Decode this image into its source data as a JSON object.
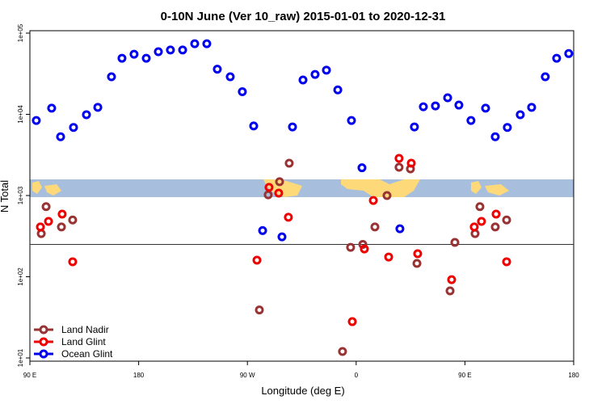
{
  "chart_data": {
    "type": "scatter",
    "title": "0-10N June (Ver 10_raw)   2015-01-01 to 2020-12-31",
    "x_label": "Longitude (deg E)",
    "y_label": "N Total",
    "log_y": true,
    "xlim": [
      90,
      540
    ],
    "ylim": [
      10,
      100000
    ],
    "xticks": [
      {
        "value": 90,
        "label": "90 E"
      },
      180,
      {
        "value": 270,
        "label": "90 W"
      },
      {
        "value": 360,
        "label": "0"
      },
      {
        "value": 450,
        "label": "90 E"
      },
      {
        "value": 540,
        "label": "180"
      }
    ],
    "yticks": [
      {
        "value": 10,
        "label": "1e+01"
      },
      {
        "value": 100,
        "label": "1e+02"
      },
      {
        "value": 1000,
        "label": "1e+03"
      },
      {
        "value": 10000,
        "label": "1e+04"
      },
      {
        "value": 100000,
        "label": "1e+05"
      }
    ],
    "hline": 250,
    "legend": "bottom-left",
    "series": [
      {
        "name": "Land Nadir",
        "color": "#993333",
        "x": [
          99.4,
          103.4,
          116.1,
          125.4,
          287.2,
          296.6,
          304.6,
          355.4,
          365.5,
          375.5,
          385.5,
          395.5,
          404.9,
          410.3,
          437.7,
          441.7,
          458.4,
          462.4,
          475.1,
          484.5,
          279.9,
          348.7
        ],
        "values": [
          340,
          730,
          410,
          500,
          1020,
          1480,
          2500,
          230,
          250,
          410,
          1000,
          2230,
          2130,
          146,
          67,
          265,
          340,
          730,
          410,
          500,
          39,
          12
        ]
      },
      {
        "name": "Land Glint",
        "color": "#ee0000",
        "x": [
          98.7,
          105.4,
          116.7,
          125.4,
          277.9,
          287.9,
          295.9,
          303.9,
          356.8,
          366.8,
          374.2,
          386.9,
          395.5,
          405.6,
          410.9,
          439.0,
          457.7,
          463.7,
          475.8,
          484.5
        ],
        "values": [
          410,
          480,
          590,
          153,
          160,
          1260,
          1070,
          540,
          28,
          220,
          870,
          175,
          2870,
          2500,
          192,
          92,
          410,
          480,
          590,
          153
        ]
      },
      {
        "name": "Ocean Glint",
        "color": "#0000ee",
        "x": [
          95.3,
          108,
          115.4,
          126.1,
          136.8,
          146.2,
          157.5,
          166.2,
          176.2,
          186.3,
          196.3,
          206.3,
          216.4,
          226.4,
          236.4,
          245.1,
          255.8,
          265.8,
          275.2,
          282.6,
          298.6,
          307.3,
          316.0,
          326.0,
          335.4,
          344.8,
          356.1,
          364.8,
          396.2,
          408.2,
          415.6,
          425.6,
          435.7,
          445.0,
          455.0,
          467.1,
          475.1,
          485.1,
          495.8,
          505.2,
          516.5,
          525.9,
          535.9
        ],
        "values": [
          8400,
          11900,
          5300,
          6900,
          9900,
          12200,
          29000,
          49000,
          55000,
          49000,
          59000,
          62000,
          62000,
          74000,
          74000,
          36000,
          29000,
          19000,
          7200,
          370,
          310,
          7000,
          26500,
          31000,
          35000,
          20000,
          8400,
          2200,
          390,
          7000,
          12400,
          12700,
          16000,
          13000,
          8400,
          11900,
          5300,
          6900,
          9900,
          12200,
          29000,
          49000,
          56000
        ]
      }
    ]
  }
}
